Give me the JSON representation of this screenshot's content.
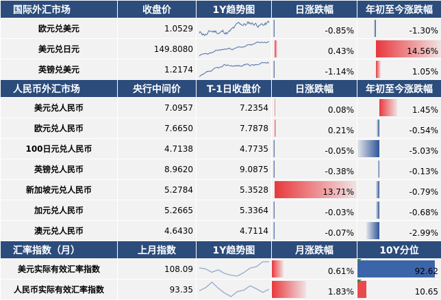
{
  "section1": {
    "headers": [
      "国际外汇市场",
      "收盘价",
      "1Y趋势图",
      "日涨跌幅",
      "年初至今涨跌幅"
    ],
    "rows": [
      {
        "name": "欧元兑美元",
        "close": "1.0529",
        "daily": "-0.85%",
        "daily_value": -0.85,
        "ytd": "-1.30%",
        "ytd_value": -1.3
      },
      {
        "name": "美元兑日元",
        "close": "149.8080",
        "daily": "0.43%",
        "daily_value": 0.43,
        "ytd": "14.56%",
        "ytd_value": 14.56
      },
      {
        "name": "英镑兑美元",
        "close": "1.2174",
        "daily": "-1.14%",
        "daily_value": -1.14,
        "ytd": "1.05%",
        "ytd_value": 1.05
      }
    ]
  },
  "section2": {
    "headers": [
      "人民币外汇市场",
      "央行中间价",
      "T-1日收盘价",
      "日涨跌幅",
      "年初至今涨跌幅"
    ],
    "rows": [
      {
        "name": "美元兑人民币",
        "mid": "7.0957",
        "close": "7.2354",
        "daily": "0.08%",
        "daily_value": 0.08,
        "ytd": "1.45%",
        "ytd_value": 1.45
      },
      {
        "name": "欧元兑人民币",
        "mid": "7.6650",
        "close": "7.7878",
        "daily": "0.21%",
        "daily_value": 0.21,
        "ytd": "-0.54%",
        "ytd_value": -0.54
      },
      {
        "name": "100日元兑人民币",
        "mid": "4.7138",
        "close": "4.7735",
        "daily": "-0.05%",
        "daily_value": -0.05,
        "ytd": "-5.03%",
        "ytd_value": -5.03
      },
      {
        "name": "英镑兑人民币",
        "mid": "8.9620",
        "close": "9.0875",
        "daily": "-0.38%",
        "daily_value": -0.38,
        "ytd": "-0.13%",
        "ytd_value": -0.13
      },
      {
        "name": "新加坡元兑人民币",
        "mid": "5.2784",
        "close": "5.3528",
        "daily": "13.71%",
        "daily_value": 13.71,
        "ytd": "-0.79%",
        "ytd_value": -0.79
      },
      {
        "name": "加元兑人民币",
        "mid": "5.2665",
        "close": "5.3364",
        "daily": "-0.03%",
        "daily_value": -0.03,
        "ytd": "-0.68%",
        "ytd_value": -0.68
      },
      {
        "name": "澳元兑人民币",
        "mid": "4.6430",
        "close": "4.7114",
        "daily": "-0.07%",
        "daily_value": -0.07,
        "ytd": "-2.99%",
        "ytd_value": -2.99
      }
    ]
  },
  "section3": {
    "headers": [
      "汇率指数（月）",
      "上月指数",
      "1Y趋势图",
      "月涨跌幅",
      "10Y分位"
    ],
    "rows": [
      {
        "name": "美元实际有效汇率指数",
        "last": "108.09",
        "monthly": "0.61%",
        "monthly_value": 0.61,
        "pct10y": "92.62",
        "pct10y_value": 92.62
      },
      {
        "name": "人民币实际有效汇率指数",
        "last": "93.35",
        "monthly": "1.83%",
        "monthly_value": 1.83,
        "pct10y": "10.65",
        "pct10y_value": 10.65
      }
    ]
  },
  "colors": {
    "header_bg": "#2c4c7c",
    "row_bg": "#f2f2f2",
    "positive": "#e8383d",
    "negative": "#2f5597",
    "sparkline": "#4a6fa5"
  }
}
